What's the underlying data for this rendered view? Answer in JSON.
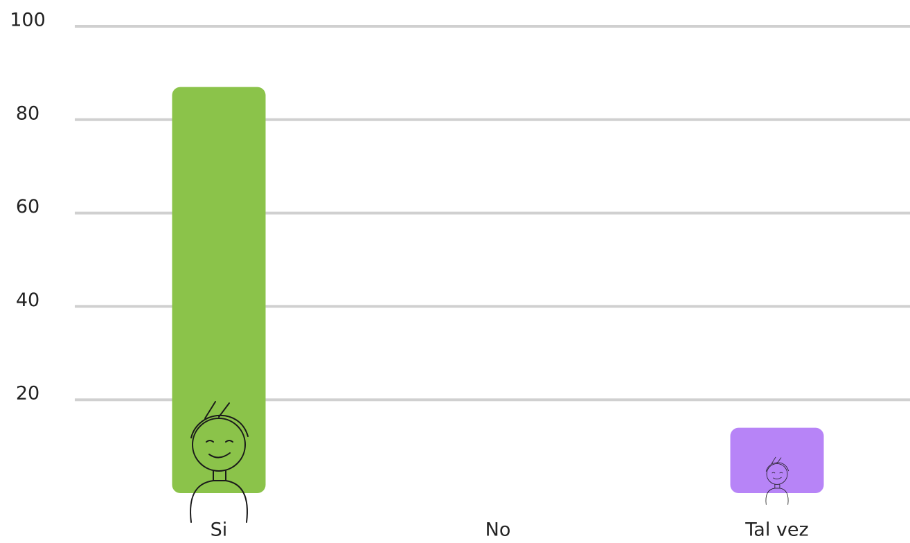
{
  "chart_data": {
    "type": "bar",
    "categories": [
      "Si",
      "No",
      "Tal vez"
    ],
    "values": [
      87,
      0,
      14
    ],
    "colors": [
      "#8bc34a",
      "#9e9e9e",
      "#b784f7"
    ],
    "ylim": [
      0,
      100
    ],
    "yticks": [
      20,
      40,
      60,
      80,
      100
    ],
    "grid": true
  }
}
